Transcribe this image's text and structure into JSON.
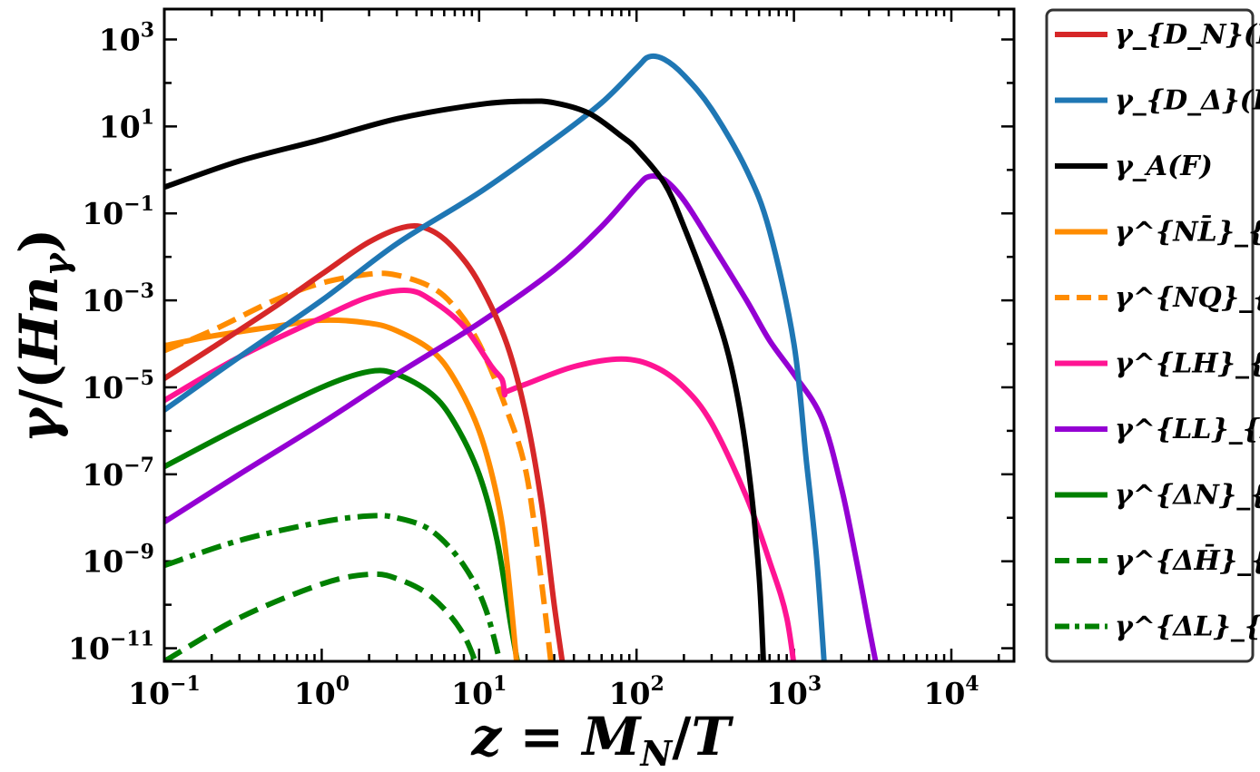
{
  "chart_data": {
    "type": "line",
    "title": "",
    "xlabel": "z = M_N/T",
    "ylabel": "γ/(H n_γ)",
    "xscale": "log",
    "yscale": "log",
    "xlim": [
      0.1,
      25000
    ],
    "ylim": [
      5e-12,
      5000
    ],
    "x_ticks": [
      {
        "value": 0.1,
        "base": "10",
        "exp": "−1"
      },
      {
        "value": 1,
        "base": "10",
        "exp": "0"
      },
      {
        "value": 10,
        "base": "10",
        "exp": "1"
      },
      {
        "value": 100,
        "base": "10",
        "exp": "2"
      },
      {
        "value": 1000,
        "base": "10",
        "exp": "3"
      },
      {
        "value": 10000,
        "base": "10",
        "exp": "4"
      }
    ],
    "y_ticks": [
      {
        "value": 1e-11,
        "base": "10",
        "exp": "−11"
      },
      {
        "value": 1e-09,
        "base": "10",
        "exp": "−9"
      },
      {
        "value": 1e-07,
        "base": "10",
        "exp": "−7"
      },
      {
        "value": 1e-05,
        "base": "10",
        "exp": "−5"
      },
      {
        "value": 0.001,
        "base": "10",
        "exp": "−3"
      },
      {
        "value": 0.1,
        "base": "10",
        "exp": "−1"
      },
      {
        "value": 10,
        "base": "10",
        "exp": "1"
      },
      {
        "value": 1000,
        "base": "10",
        "exp": "3"
      }
    ],
    "legend_position": "outside-right",
    "series": [
      {
        "id": "gD_N",
        "label": "γ_{D_N}(F)",
        "color": "#d62728",
        "dash": "solid",
        "points": [
          [
            0.1,
            1.6e-05
          ],
          [
            0.2,
            8e-05
          ],
          [
            0.5,
            0.0007
          ],
          [
            1,
            0.004
          ],
          [
            2,
            0.022
          ],
          [
            3.5,
            0.05
          ],
          [
            5,
            0.04
          ],
          [
            7,
            0.015
          ],
          [
            10,
            0.0025
          ],
          [
            15,
            0.0001
          ],
          [
            20,
            2e-06
          ],
          [
            25,
            2e-08
          ],
          [
            30,
            1e-10
          ],
          [
            36,
            1e-12
          ]
        ]
      },
      {
        "id": "gD_Delta",
        "label": "γ_{D_Δ}(F)",
        "color": "#1f77b4",
        "dash": "solid",
        "points": [
          [
            0.1,
            3e-06
          ],
          [
            0.3,
            5e-05
          ],
          [
            1,
            0.001
          ],
          [
            3,
            0.02
          ],
          [
            10,
            0.3
          ],
          [
            30,
            5
          ],
          [
            60,
            35
          ],
          [
            100,
            220
          ],
          [
            120,
            400
          ],
          [
            150,
            350
          ],
          [
            200,
            150
          ],
          [
            300,
            25
          ],
          [
            500,
            1
          ],
          [
            700,
            0.04
          ],
          [
            1000,
            0.0001
          ],
          [
            1200,
            2e-07
          ],
          [
            1400,
            1e-09
          ],
          [
            1600,
            1e-12
          ]
        ]
      },
      {
        "id": "gA",
        "label": "γ_A(F)",
        "color": "#000000",
        "dash": "solid",
        "points": [
          [
            0.1,
            0.4
          ],
          [
            0.3,
            1.6
          ],
          [
            1,
            5
          ],
          [
            3,
            15
          ],
          [
            10,
            32
          ],
          [
            20,
            38
          ],
          [
            30,
            35
          ],
          [
            50,
            20
          ],
          [
            80,
            6
          ],
          [
            100,
            3
          ],
          [
            150,
            0.5
          ],
          [
            200,
            0.05
          ],
          [
            300,
            0.001
          ],
          [
            400,
            3e-05
          ],
          [
            500,
            3e-07
          ],
          [
            600,
            5e-10
          ],
          [
            650,
            1e-12
          ]
        ]
      },
      {
        "id": "gNLbar",
        "label": "γ^{NL̄}_{Q̄t}(F)",
        "color": "#ff8c00",
        "dash": "solid",
        "points": [
          [
            0.1,
            9e-05
          ],
          [
            0.2,
            0.00015
          ],
          [
            0.5,
            0.00025
          ],
          [
            1,
            0.00035
          ],
          [
            2,
            0.0003
          ],
          [
            3,
            0.0002
          ],
          [
            5,
            7e-05
          ],
          [
            7,
            1.5e-05
          ],
          [
            10,
            1e-06
          ],
          [
            13,
            3e-08
          ],
          [
            15,
            1e-09
          ],
          [
            18,
            1e-12
          ]
        ]
      },
      {
        "id": "gNQ",
        "label": "γ^{NQ}_{Lt}(F)",
        "color": "#ff8c00",
        "dash": "dashed",
        "points": [
          [
            0.1,
            7e-05
          ],
          [
            0.2,
            0.0002
          ],
          [
            0.5,
            0.001
          ],
          [
            1,
            0.0025
          ],
          [
            2,
            0.004
          ],
          [
            3,
            0.0038
          ],
          [
            5,
            0.002
          ],
          [
            7,
            0.0007
          ],
          [
            10,
            0.0001
          ],
          [
            15,
            3e-06
          ],
          [
            20,
            1e-07
          ],
          [
            25,
            3e-10
          ],
          [
            30,
            1e-12
          ]
        ]
      },
      {
        "id": "gLH",
        "label": "γ^{LH}_{L̄H̄}(F)",
        "color": "#ff1493",
        "dash": "solid",
        "points": [
          [
            0.1,
            5e-06
          ],
          [
            0.3,
            5e-05
          ],
          [
            1,
            0.0004
          ],
          [
            2,
            0.0012
          ],
          [
            3.5,
            0.0017
          ],
          [
            5,
            0.001
          ],
          [
            8,
            0.00025
          ],
          [
            12,
            3e-05
          ],
          [
            14,
            1.5e-05
          ],
          [
            14.5,
            7e-06
          ],
          [
            15,
            8e-06
          ],
          [
            20,
            1.2e-05
          ],
          [
            40,
            3e-05
          ],
          [
            80,
            4.5e-05
          ],
          [
            130,
            3e-05
          ],
          [
            200,
            1e-05
          ],
          [
            300,
            1.5e-06
          ],
          [
            500,
            3e-08
          ],
          [
            700,
            1e-09
          ],
          [
            900,
            5e-11
          ],
          [
            1050,
            1e-12
          ]
        ]
      },
      {
        "id": "gLL",
        "label": "γ^{LL}_{H̄H̄}(F)",
        "color": "#9400d3",
        "dash": "solid",
        "points": [
          [
            0.1,
            8e-09
          ],
          [
            0.3,
            1e-07
          ],
          [
            1,
            1.5e-06
          ],
          [
            3,
            2e-05
          ],
          [
            10,
            0.0003
          ],
          [
            30,
            0.005
          ],
          [
            60,
            0.05
          ],
          [
            100,
            0.4
          ],
          [
            120,
            0.7
          ],
          [
            150,
            0.6
          ],
          [
            200,
            0.2
          ],
          [
            300,
            0.02
          ],
          [
            500,
            0.001
          ],
          [
            700,
            0.00012
          ],
          [
            1000,
            2e-05
          ],
          [
            1500,
            2e-06
          ],
          [
            2000,
            5e-08
          ],
          [
            2500,
            1e-09
          ],
          [
            3000,
            3e-11
          ],
          [
            3600,
            1e-12
          ]
        ]
      },
      {
        "id": "gDeltaN",
        "label": "γ^{ΔN}_{L̄H}(F)",
        "color": "#008000",
        "dash": "solid",
        "points": [
          [
            0.1,
            1.5e-07
          ],
          [
            0.3,
            1.2e-06
          ],
          [
            1,
            1e-05
          ],
          [
            2,
            2.3e-05
          ],
          [
            3,
            2e-05
          ],
          [
            5,
            7e-06
          ],
          [
            7,
            1.5e-06
          ],
          [
            10,
            1e-07
          ],
          [
            13,
            3e-09
          ],
          [
            16,
            3e-11
          ],
          [
            19,
            1e-12
          ]
        ]
      },
      {
        "id": "gDeltaHbar",
        "label": "γ^{ΔH̄}_{L̄N}(F)",
        "color": "#008000",
        "dash": "dashed",
        "points": [
          [
            0.1,
            5e-12
          ],
          [
            0.3,
            5e-11
          ],
          [
            1,
            3e-10
          ],
          [
            2,
            5e-10
          ],
          [
            3,
            4e-10
          ],
          [
            5,
            1.5e-10
          ],
          [
            8,
            2e-11
          ],
          [
            11,
            1e-12
          ]
        ]
      },
      {
        "id": "gDeltaL",
        "label": "γ^{ΔL}_{HN}(F)",
        "color": "#008000",
        "dash": "dashdot",
        "points": [
          [
            0.1,
            8e-10
          ],
          [
            0.3,
            3e-09
          ],
          [
            1,
            8e-09
          ],
          [
            2,
            1.1e-08
          ],
          [
            3,
            1e-08
          ],
          [
            5,
            5e-09
          ],
          [
            8,
            8e-10
          ],
          [
            11,
            8e-11
          ],
          [
            14,
            3e-12
          ]
        ]
      }
    ]
  }
}
